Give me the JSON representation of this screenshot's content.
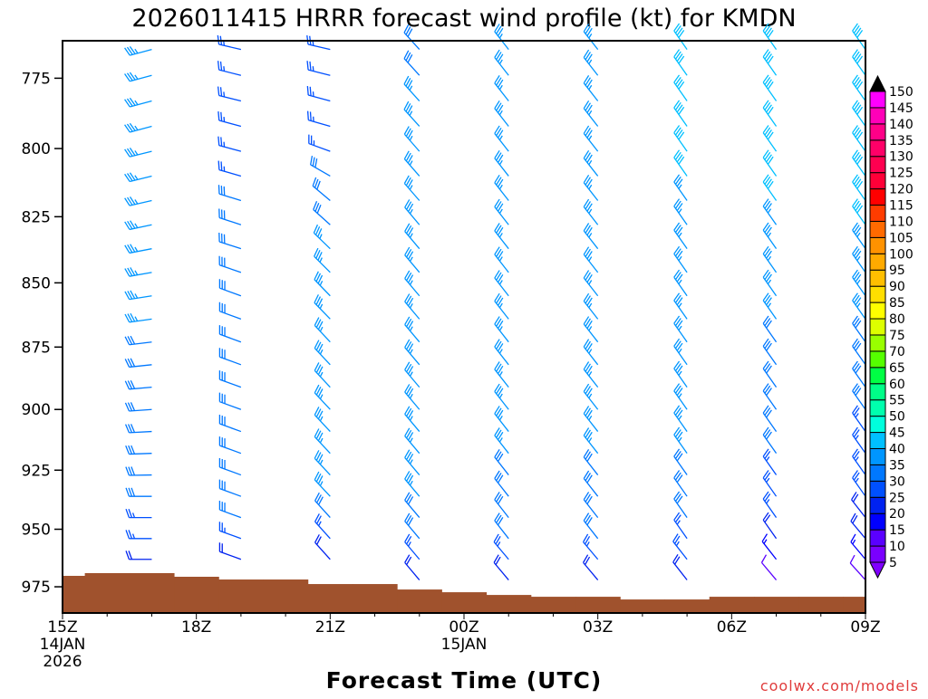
{
  "chart_data": {
    "type": "wind-barb-profile",
    "title": "2026011415 HRRR forecast wind profile (kt) for KMDN",
    "xlabel": "Forecast Time (UTC)",
    "credit": "coolwx.com/models",
    "x_range_hours": [
      0,
      18
    ],
    "y_range_hpa": [
      762,
      986.6
    ],
    "y_scale": "log",
    "y_ticks": [
      775,
      800,
      825,
      850,
      875,
      900,
      925,
      950,
      975
    ],
    "x_ticks": [
      {
        "hour": 0,
        "lines": [
          "15Z",
          "14JAN",
          "2026"
        ]
      },
      {
        "hour": 3,
        "lines": [
          "18Z"
        ]
      },
      {
        "hour": 6,
        "lines": [
          "21Z"
        ]
      },
      {
        "hour": 9,
        "lines": [
          "00Z",
          "15JAN"
        ]
      },
      {
        "hour": 12,
        "lines": [
          "03Z"
        ]
      },
      {
        "hour": 15,
        "lines": [
          "06Z"
        ]
      },
      {
        "hour": 18,
        "lines": [
          "09Z"
        ]
      }
    ],
    "levels_hpa": [
      765,
      774,
      783,
      792,
      801,
      810,
      819,
      828,
      837,
      846,
      855,
      864,
      873,
      882,
      891,
      900,
      909,
      918,
      927,
      936,
      945,
      954,
      963,
      972
    ],
    "columns": [
      {
        "hour": 2,
        "time": "17Z",
        "speed_kt": [
          35,
          35,
          35,
          35,
          35,
          35,
          35,
          35,
          35,
          35,
          35,
          35,
          30,
          30,
          30,
          30,
          30,
          30,
          30,
          30,
          25,
          25,
          20,
          10
        ],
        "dir_deg": [
          255,
          255,
          255,
          255,
          256,
          256,
          257,
          258,
          259,
          260,
          261,
          262,
          263,
          264,
          265,
          266,
          267,
          268,
          269,
          270,
          270,
          270,
          270,
          270
        ]
      },
      {
        "hour": 4,
        "time": "19Z",
        "speed_kt": [
          25,
          25,
          25,
          25,
          25,
          25,
          30,
          30,
          30,
          30,
          30,
          30,
          30,
          30,
          30,
          30,
          30,
          30,
          30,
          30,
          30,
          25,
          20,
          15
        ],
        "dir_deg": [
          283,
          284,
          284,
          285,
          285,
          286,
          287,
          288,
          288,
          289,
          290,
          290,
          290,
          290,
          290,
          290,
          290,
          290,
          290,
          290,
          290,
          290,
          290,
          290
        ]
      },
      {
        "hour": 6,
        "time": "21Z",
        "speed_kt": [
          25,
          25,
          25,
          25,
          25,
          30,
          30,
          30,
          35,
          35,
          35,
          35,
          35,
          35,
          35,
          35,
          35,
          35,
          35,
          35,
          30,
          25,
          20,
          15
        ],
        "dir_deg": [
          283,
          284,
          285,
          286,
          290,
          300,
          310,
          312,
          314,
          315,
          316,
          316,
          317,
          317,
          317,
          317,
          317,
          317,
          317,
          317,
          318,
          318,
          318,
          318
        ]
      },
      {
        "hour": 8,
        "time": "23Z",
        "speed_kt": [
          30,
          30,
          35,
          35,
          35,
          35,
          35,
          35,
          35,
          35,
          35,
          35,
          35,
          35,
          35,
          35,
          35,
          35,
          35,
          35,
          30,
          30,
          25,
          20
        ],
        "dir_deg": [
          318,
          318,
          318,
          318,
          319,
          319,
          319,
          320,
          320,
          320,
          320,
          320,
          320,
          320,
          320,
          320,
          320,
          320,
          320,
          320,
          320,
          320,
          320,
          320
        ]
      },
      {
        "hour": 10,
        "time": "01Z",
        "speed_kt": [
          35,
          35,
          35,
          35,
          35,
          35,
          35,
          35,
          35,
          35,
          35,
          35,
          35,
          35,
          35,
          35,
          35,
          35,
          30,
          30,
          30,
          30,
          25,
          20
        ],
        "dir_deg": [
          322,
          322,
          322,
          322,
          322,
          322,
          322,
          322,
          322,
          322,
          322,
          322,
          322,
          322,
          322,
          322,
          322,
          322,
          322,
          322,
          322,
          322,
          320,
          320
        ]
      },
      {
        "hour": 12,
        "time": "03Z",
        "speed_kt": [
          35,
          35,
          35,
          35,
          35,
          35,
          35,
          35,
          35,
          35,
          35,
          35,
          35,
          35,
          35,
          35,
          35,
          35,
          30,
          30,
          30,
          30,
          25,
          20
        ],
        "dir_deg": [
          322,
          322,
          322,
          322,
          322,
          322,
          322,
          322,
          322,
          322,
          322,
          322,
          322,
          322,
          322,
          322,
          322,
          322,
          322,
          322,
          322,
          322,
          320,
          320
        ]
      },
      {
        "hour": 14,
        "time": "05Z",
        "speed_kt": [
          40,
          40,
          40,
          40,
          40,
          40,
          35,
          35,
          35,
          35,
          35,
          35,
          35,
          35,
          35,
          35,
          35,
          35,
          30,
          30,
          30,
          25,
          25,
          20
        ],
        "dir_deg": [
          325,
          325,
          325,
          325,
          325,
          325,
          325,
          325,
          325,
          325,
          325,
          325,
          325,
          325,
          325,
          325,
          325,
          325,
          325,
          325,
          325,
          325,
          322,
          322
        ]
      },
      {
        "hour": 16,
        "time": "07Z",
        "speed_kt": [
          40,
          40,
          40,
          40,
          40,
          40,
          40,
          35,
          35,
          35,
          35,
          35,
          30,
          30,
          30,
          30,
          30,
          30,
          25,
          25,
          25,
          20,
          15,
          10
        ],
        "dir_deg": [
          325,
          325,
          325,
          325,
          325,
          325,
          325,
          325,
          325,
          325,
          325,
          325,
          325,
          325,
          325,
          325,
          325,
          325,
          325,
          325,
          325,
          325,
          322,
          320
        ]
      },
      {
        "hour": 18,
        "time": "09Z",
        "speed_kt": [
          40,
          40,
          40,
          40,
          40,
          40,
          40,
          40,
          35,
          35,
          35,
          35,
          30,
          30,
          30,
          30,
          25,
          25,
          25,
          25,
          20,
          20,
          15,
          10
        ],
        "dir_deg": [
          325,
          325,
          325,
          325,
          325,
          325,
          325,
          325,
          325,
          325,
          325,
          325,
          325,
          325,
          325,
          325,
          325,
          325,
          325,
          325,
          322,
          320,
          320,
          318
        ]
      }
    ],
    "surface_pressure_hpa_hourly": [
      970.2,
      969.0,
      969.0,
      970.6,
      971.8,
      971.8,
      973.8,
      973.8,
      976.2,
      977.4,
      978.6,
      979.4,
      979.4,
      980.6,
      980.6,
      979.4,
      979.4,
      979.4,
      979.4
    ],
    "terrain_color": "#a0522d",
    "colorbar": {
      "labels": [
        "5",
        "10",
        "15",
        "20",
        "25",
        "30",
        "35",
        "40",
        "45",
        "50",
        "55",
        "60",
        "65",
        "70",
        "75",
        "80",
        "85",
        "90",
        "95",
        "100",
        "105",
        "110",
        "115",
        "120",
        "125",
        "130",
        "135",
        "140",
        "145",
        "150"
      ],
      "colors": [
        "#7a00ff",
        "#5a00ff",
        "#0000ff",
        "#0022f0",
        "#0050ff",
        "#0078ff",
        "#0096ff",
        "#00c0ff",
        "#00ffdd",
        "#00ffae",
        "#00ff88",
        "#00ff44",
        "#55ff00",
        "#99ff00",
        "#ddff00",
        "#ffff00",
        "#ffde00",
        "#ffbf00",
        "#ffaa00",
        "#ff9200",
        "#ff6a00",
        "#ff3c00",
        "#ff0000",
        "#ff0038",
        "#ff0050",
        "#ff0068",
        "#ff0088",
        "#ff00b8",
        "#ff00ff"
      ],
      "under_color": "#8000ff",
      "over_color": "#000000"
    }
  }
}
